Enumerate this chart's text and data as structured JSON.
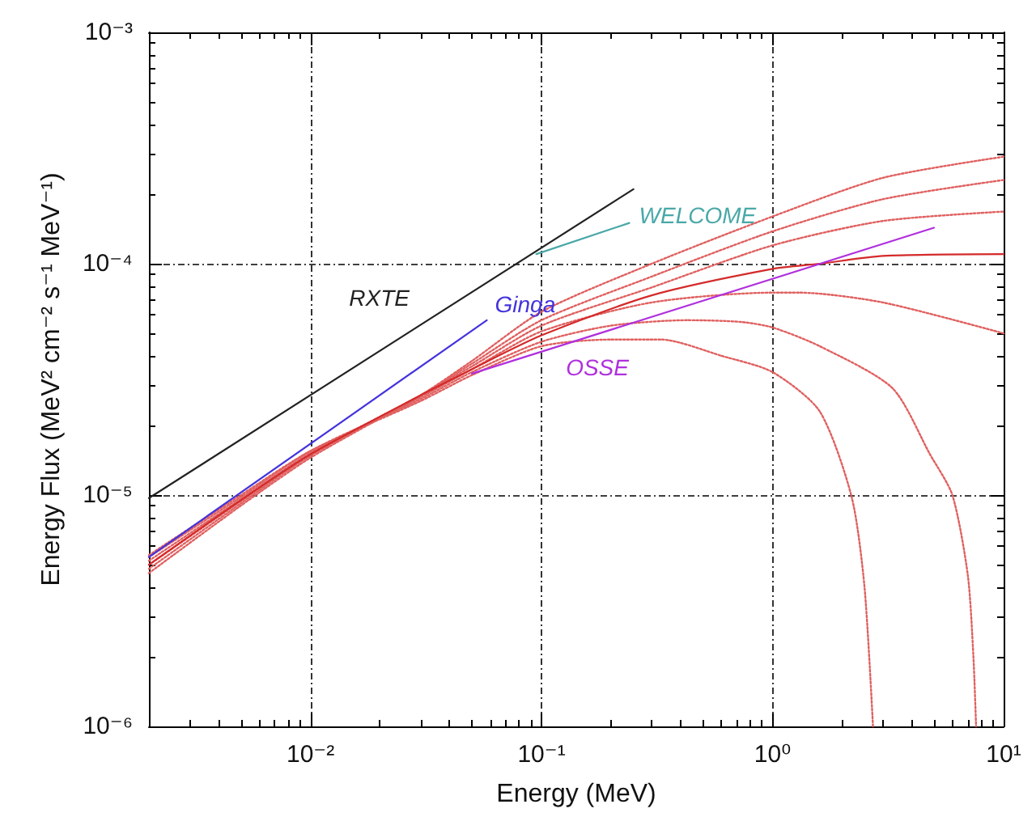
{
  "chart_data": {
    "type": "line",
    "xlabel": "Energy (MeV)",
    "ylabel": "Energy Flux (MeV² cm⁻² s⁻¹ MeV⁻¹)",
    "log": "xy",
    "grid": true,
    "marker": "none",
    "xlim": [
      0.002,
      10
    ],
    "ylim": [
      1e-06,
      0.001
    ],
    "xticks": [
      {
        "value": 0.003,
        "label": null
      },
      {
        "value": 0.004,
        "label": null
      },
      {
        "value": 0.005,
        "label": null
      },
      {
        "value": 0.006,
        "label": null
      },
      {
        "value": 0.007,
        "label": null
      },
      {
        "value": 0.008,
        "label": null
      },
      {
        "value": 0.009,
        "label": null
      },
      {
        "value": 0.01,
        "label": "10⁻²"
      },
      {
        "value": 0.02,
        "label": null
      },
      {
        "value": 0.03,
        "label": null
      },
      {
        "value": 0.04,
        "label": null
      },
      {
        "value": 0.05,
        "label": null
      },
      {
        "value": 0.06,
        "label": null
      },
      {
        "value": 0.07,
        "label": null
      },
      {
        "value": 0.08,
        "label": null
      },
      {
        "value": 0.09,
        "label": null
      },
      {
        "value": 0.1,
        "label": "10⁻¹"
      },
      {
        "value": 0.2,
        "label": null
      },
      {
        "value": 0.3,
        "label": null
      },
      {
        "value": 0.4,
        "label": null
      },
      {
        "value": 0.5,
        "label": null
      },
      {
        "value": 0.6,
        "label": null
      },
      {
        "value": 0.7,
        "label": null
      },
      {
        "value": 0.8,
        "label": null
      },
      {
        "value": 0.9,
        "label": null
      },
      {
        "value": 1,
        "label": "10⁰"
      },
      {
        "value": 2,
        "label": null
      },
      {
        "value": 3,
        "label": null
      },
      {
        "value": 4,
        "label": null
      },
      {
        "value": 5,
        "label": null
      },
      {
        "value": 6,
        "label": null
      },
      {
        "value": 7,
        "label": null
      },
      {
        "value": 8,
        "label": null
      },
      {
        "value": 9,
        "label": null
      },
      {
        "value": 10,
        "label": "10¹"
      }
    ],
    "yticks": [
      {
        "value": 1e-06,
        "label": "10⁻⁶"
      },
      {
        "value": 2e-06,
        "label": null
      },
      {
        "value": 3e-06,
        "label": null
      },
      {
        "value": 4e-06,
        "label": null
      },
      {
        "value": 5e-06,
        "label": null
      },
      {
        "value": 6e-06,
        "label": null
      },
      {
        "value": 7e-06,
        "label": null
      },
      {
        "value": 8e-06,
        "label": null
      },
      {
        "value": 9e-06,
        "label": null
      },
      {
        "value": 1e-05,
        "label": "10⁻⁵"
      },
      {
        "value": 2e-05,
        "label": null
      },
      {
        "value": 3e-05,
        "label": null
      },
      {
        "value": 4e-05,
        "label": null
      },
      {
        "value": 5e-05,
        "label": null
      },
      {
        "value": 6e-05,
        "label": null
      },
      {
        "value": 7e-05,
        "label": null
      },
      {
        "value": 8e-05,
        "label": null
      },
      {
        "value": 9e-05,
        "label": null
      },
      {
        "value": 0.0001,
        "label": "10⁻⁴"
      },
      {
        "value": 0.0002,
        "label": null
      },
      {
        "value": 0.0003,
        "label": null
      },
      {
        "value": 0.0004,
        "label": null
      },
      {
        "value": 0.0005,
        "label": null
      },
      {
        "value": 0.0006,
        "label": null
      },
      {
        "value": 0.0007,
        "label": null
      },
      {
        "value": 0.0008,
        "label": null
      },
      {
        "value": 0.0009,
        "label": null
      },
      {
        "value": 0.001,
        "label": "10⁻³"
      }
    ],
    "series": [
      {
        "color": "#e06060",
        "line_style": "dotted",
        "x": [
          0.002,
          0.005,
          0.01,
          0.03,
          0.05,
          0.1,
          0.3,
          1,
          3,
          10
        ],
        "values": [
          4.6e-06,
          9e-06,
          1.45e-05,
          2.7e-05,
          3.8e-05,
          6.2e-05,
          0.0001,
          0.00016,
          0.000235,
          0.00029
        ]
      },
      {
        "color": "#e06060",
        "line_style": "dotted",
        "x": [
          0.002,
          0.005,
          0.01,
          0.03,
          0.05,
          0.1,
          0.3,
          1,
          3,
          10
        ],
        "values": [
          4.8e-06,
          9.2e-06,
          1.48e-05,
          2.7e-05,
          3.7e-05,
          5.7e-05,
          8.8e-05,
          0.000138,
          0.00019,
          0.00023
        ]
      },
      {
        "color": "#e06060",
        "line_style": "dotted",
        "x": [
          0.002,
          0.005,
          0.01,
          0.03,
          0.05,
          0.1,
          0.3,
          1,
          3,
          10
        ],
        "values": [
          5e-06,
          9.4e-06,
          1.5e-05,
          2.7e-05,
          3.6e-05,
          5.4e-05,
          7.9e-05,
          0.00012,
          0.000153,
          0.000168
        ]
      },
      {
        "color": "#e06060",
        "line_style": "dotted",
        "x": [
          0.002,
          0.005,
          0.01,
          0.03,
          0.05,
          0.1,
          0.3,
          1,
          1.3,
          3,
          10
        ],
        "values": [
          5.2e-06,
          9.6e-06,
          1.52e-05,
          2.65e-05,
          3.5e-05,
          5.1e-05,
          6.8e-05,
          7.5e-05,
          7.5e-05,
          6.8e-05,
          5e-05
        ]
      },
      {
        "color": "#e06060",
        "line_style": "dotted",
        "x": [
          0.002,
          0.005,
          0.01,
          0.03,
          0.05,
          0.1,
          0.2,
          0.43,
          0.73,
          1,
          1.6,
          3.3,
          4.8,
          6.0,
          7.0,
          7.4,
          7.6
        ],
        "values": [
          5.4e-06,
          9.8e-06,
          1.55e-05,
          2.6e-05,
          3.4e-05,
          4.6e-05,
          5.4e-05,
          5.7e-05,
          5.6e-05,
          5.3e-05,
          4.4e-05,
          2.9e-05,
          1.5e-05,
          1e-05,
          4.5e-06,
          2e-06,
          1e-06
        ]
      },
      {
        "color": "#e06060",
        "line_style": "dotted",
        "x": [
          0.002,
          0.005,
          0.01,
          0.03,
          0.05,
          0.1,
          0.2,
          0.33,
          0.6,
          1,
          1.6,
          2.2,
          2.5,
          2.72
        ],
        "values": [
          5.5e-06,
          1e-05,
          1.55e-05,
          2.55e-05,
          3.3e-05,
          4.4e-05,
          4.7e-05,
          4.7e-05,
          4e-05,
          3.4e-05,
          2.3e-05,
          9.8e-06,
          4e-06,
          1e-06
        ]
      },
      {
        "color": "#d42a2a",
        "x": [
          0.002,
          0.005,
          0.01,
          0.03,
          0.05,
          0.1,
          0.3,
          1,
          1.6,
          3,
          10
        ],
        "values": [
          5e-06,
          9.5e-06,
          1.5e-05,
          2.7e-05,
          3.5e-05,
          4.9e-05,
          7.3e-05,
          9.5e-05,
          0.0001,
          0.000108,
          0.00011
        ]
      },
      {
        "name": "RXTE",
        "color": "#222222",
        "x": [
          0.002,
          0.25
        ],
        "values": [
          9.7e-06,
          0.00021
        ]
      },
      {
        "name": "Ginga",
        "color": "#4433dd",
        "x": [
          0.002,
          0.058
        ],
        "values": [
          5.4e-06,
          5.7e-05
        ]
      },
      {
        "name": "WELCOME",
        "color": "#4aa8a8",
        "x": [
          0.095,
          0.24
        ],
        "values": [
          0.00011,
          0.00015
        ]
      },
      {
        "name": "OSSE",
        "color": "#b030dd",
        "x": [
          0.05,
          5.0
        ],
        "values": [
          3.35e-05,
          0.000143
        ]
      }
    ]
  }
}
